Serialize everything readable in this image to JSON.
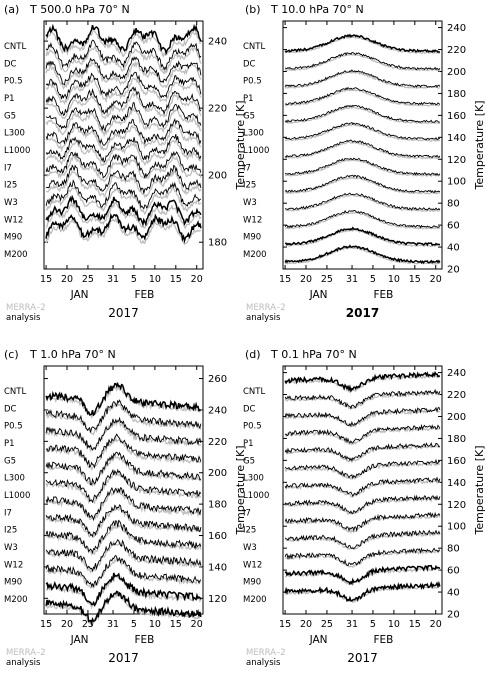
{
  "chart_data": [
    {
      "type": "line",
      "panel_label": "(a)",
      "title": "T 500.0 hPa 70° N",
      "ylabel": "Temperature [K]",
      "yticks": [
        180,
        200,
        220,
        240
      ],
      "ylim": [
        172,
        246
      ],
      "xticks": [
        "15",
        "20",
        "25",
        "31",
        "5",
        "10",
        "15",
        "20"
      ],
      "xlabel_months": [
        "JAN",
        "FEB"
      ],
      "year": "2017",
      "legend": [
        "MERRA–2",
        "analysis"
      ],
      "series_labels": [
        "CNTL",
        "DC",
        "P0.5",
        "P1",
        "G5",
        "L300",
        "L1000",
        "I7",
        "I25",
        "W3",
        "W12",
        "M90",
        "M200"
      ],
      "series_base": [
        240,
        235.3,
        230.7,
        226,
        221.4,
        216.7,
        212,
        207.4,
        202.7,
        198.1,
        193.4,
        188.7,
        184.1
      ],
      "analysis_color": "#bdbdbd"
    },
    {
      "type": "line",
      "panel_label": "(b)",
      "title": "T 10.0 hPa 70° N",
      "ylabel": "Temperature [K]",
      "yticks": [
        20,
        40,
        60,
        80,
        100,
        120,
        140,
        160,
        180,
        200,
        220,
        240
      ],
      "ylim": [
        20,
        246
      ],
      "xticks": [
        "15",
        "20",
        "25",
        "31",
        "5",
        "10",
        "15",
        "20"
      ],
      "xlabel_months": [
        "JAN",
        "FEB"
      ],
      "year": "2017",
      "legend": [
        "MERRA–2",
        "analysis"
      ],
      "series_labels": [
        "CNTL",
        "DC",
        "P0.5",
        "P1",
        "G5",
        "L300",
        "L1000",
        "I7",
        "I25",
        "W3",
        "W12",
        "M90",
        "M200"
      ],
      "series_base": [
        220,
        204,
        188,
        172,
        156,
        140,
        124,
        108,
        92,
        76,
        60,
        44,
        28
      ],
      "analysis_color": "#bdbdbd"
    },
    {
      "type": "line",
      "panel_label": "(c)",
      "title": "T 1.0 hPa 70° N",
      "ylabel": "Temperature [K]",
      "yticks": [
        120,
        140,
        160,
        180,
        200,
        220,
        240,
        260
      ],
      "ylim": [
        110,
        268
      ],
      "xticks": [
        "15",
        "20",
        "25",
        "31",
        "5",
        "10",
        "15",
        "20"
      ],
      "xlabel_months": [
        "JAN",
        "FEB"
      ],
      "year": "2017",
      "legend": [
        "MERRA–2",
        "analysis"
      ],
      "series_labels": [
        "CNTL",
        "DC",
        "P0.5",
        "P1",
        "G5",
        "L300",
        "L1000",
        "I7",
        "I25",
        "W3",
        "W12",
        "M90",
        "M200"
      ],
      "series_base": [
        245,
        234,
        223,
        212,
        201,
        190,
        179,
        168,
        157,
        146,
        135,
        124,
        113
      ],
      "analysis_color": "#bdbdbd"
    },
    {
      "type": "line",
      "panel_label": "(d)",
      "title": "T 0.1 hPa 70° N",
      "ylabel": "Temperature [K]",
      "yticks": [
        20,
        40,
        60,
        80,
        100,
        120,
        140,
        160,
        180,
        200,
        220,
        240
      ],
      "ylim": [
        20,
        246
      ],
      "xticks": [
        "15",
        "20",
        "25",
        "31",
        "5",
        "10",
        "15",
        "20"
      ],
      "xlabel_months": [
        "JAN",
        "FEB"
      ],
      "year": "2017",
      "legend": [
        "MERRA–2",
        "analysis"
      ],
      "series_labels": [
        "CNTL",
        "DC",
        "P0.5",
        "P1",
        "G5",
        "L300",
        "L1000",
        "I7",
        "I25",
        "W3",
        "W12",
        "M90",
        "M200"
      ],
      "series_base": [
        232,
        216,
        200,
        184,
        168,
        152,
        136,
        120,
        104,
        88,
        72,
        56,
        40
      ],
      "analysis_color": "#bdbdbd"
    }
  ]
}
